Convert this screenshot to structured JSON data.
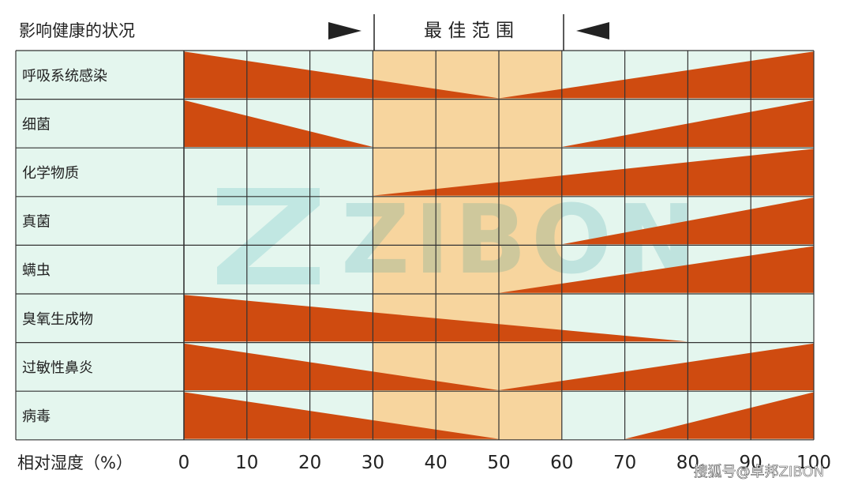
{
  "chart_data": {
    "type": "bar",
    "title": "影响健康的状况",
    "optimal_label": "最 佳 范 围",
    "optimal_range": [
      30,
      60
    ],
    "xlabel": "相对湿度（%）",
    "xlim": [
      0,
      100
    ],
    "x_ticks": [
      "0",
      "10",
      "20",
      "30",
      "40",
      "50",
      "60",
      "70",
      "80",
      "90",
      "100"
    ],
    "rows": [
      {
        "name": "呼吸系统感染",
        "segments": [
          {
            "from": 0,
            "to": 50,
            "high_at": "start"
          },
          {
            "from": 50,
            "to": 100,
            "high_at": "end"
          }
        ]
      },
      {
        "name": "细菌",
        "segments": [
          {
            "from": 0,
            "to": 30,
            "high_at": "start"
          },
          {
            "from": 60,
            "to": 100,
            "high_at": "end"
          }
        ]
      },
      {
        "name": "化学物质",
        "segments": [
          {
            "from": 30,
            "to": 100,
            "high_at": "end"
          }
        ]
      },
      {
        "name": "真菌",
        "segments": [
          {
            "from": 60,
            "to": 100,
            "high_at": "end"
          }
        ]
      },
      {
        "name": "螨虫",
        "segments": [
          {
            "from": 50,
            "to": 100,
            "high_at": "end"
          }
        ]
      },
      {
        "name": "臭氧生成物",
        "segments": [
          {
            "from": 0,
            "to": 80,
            "high_at": "start"
          }
        ]
      },
      {
        "name": "过敏性鼻炎",
        "segments": [
          {
            "from": 0,
            "to": 50,
            "high_at": "start"
          },
          {
            "from": 50,
            "to": 100,
            "high_at": "end"
          }
        ]
      },
      {
        "name": "病毒",
        "segments": [
          {
            "from": 0,
            "to": 50,
            "high_at": "start"
          },
          {
            "from": 70,
            "to": 100,
            "high_at": "end"
          }
        ]
      }
    ],
    "colors": {
      "wedge": "#cf4b10",
      "cell": "#e4f6ee",
      "optimal": "#f7d59e",
      "grid": "#333333"
    }
  },
  "watermark": "ZIBON",
  "credit": "搜狐号@卓邦ZIBON"
}
